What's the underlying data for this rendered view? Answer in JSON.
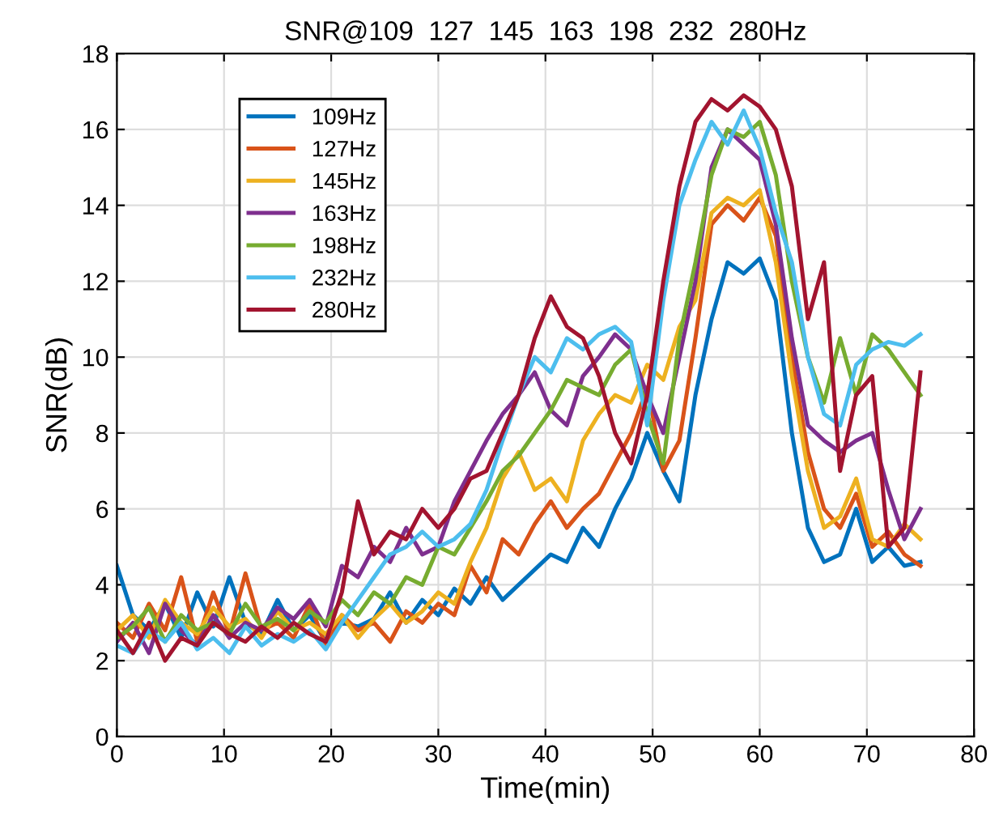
{
  "chart_data": {
    "type": "line",
    "title": "SNR@109  127  145  163  198  232  280Hz",
    "xlabel": "Time(min)",
    "ylabel": "SNR(dB)",
    "x": [
      0,
      1.5,
      3,
      4.5,
      6,
      7.5,
      9,
      10.5,
      12,
      13.5,
      15,
      16.5,
      18,
      19.5,
      21,
      22.5,
      24,
      25.5,
      27,
      28.5,
      30,
      31.5,
      33,
      34.5,
      36,
      37.5,
      39,
      40.5,
      42,
      43.5,
      45,
      46.5,
      48,
      49.5,
      51,
      52.5,
      54,
      55.5,
      57,
      58.5,
      60,
      61.5,
      63,
      64.5,
      66,
      67.5,
      69,
      70.5,
      72,
      73.5,
      75
    ],
    "series": [
      {
        "name": "109Hz",
        "color": "#0072bd",
        "values": [
          4.5,
          3.2,
          2.8,
          3.5,
          2.6,
          3.8,
          2.9,
          4.2,
          3.0,
          2.7,
          3.6,
          2.8,
          3.2,
          2.5,
          3.0,
          2.9,
          3.1,
          3.8,
          3.0,
          3.6,
          3.2,
          3.9,
          3.5,
          4.2,
          3.6,
          4.0,
          4.4,
          4.8,
          4.6,
          5.5,
          5.0,
          6.0,
          6.8,
          8.0,
          7.0,
          6.2,
          9.0,
          11.0,
          12.5,
          12.2,
          12.6,
          11.5,
          8.0,
          5.5,
          4.6,
          4.8,
          6.0,
          4.6,
          5.0,
          4.5,
          4.6
        ]
      },
      {
        "name": "127Hz",
        "color": "#d95319",
        "values": [
          3.0,
          2.6,
          3.5,
          2.8,
          4.2,
          2.5,
          3.8,
          2.7,
          4.3,
          2.8,
          3.0,
          2.6,
          3.5,
          2.4,
          3.2,
          2.8,
          3.0,
          2.5,
          3.3,
          3.0,
          3.5,
          3.2,
          4.5,
          3.8,
          5.2,
          4.8,
          5.6,
          6.2,
          5.5,
          6.0,
          6.4,
          7.2,
          8.0,
          9.2,
          7.0,
          7.8,
          10.5,
          13.5,
          14.0,
          13.6,
          14.2,
          13.2,
          10.0,
          7.5,
          6.0,
          5.5,
          6.4,
          5.0,
          5.4,
          4.8,
          4.5
        ]
      },
      {
        "name": "145Hz",
        "color": "#edb120",
        "values": [
          2.8,
          3.2,
          2.6,
          3.6,
          3.0,
          2.7,
          3.4,
          2.9,
          3.1,
          2.6,
          3.3,
          2.8,
          3.0,
          2.7,
          3.2,
          2.6,
          3.1,
          3.5,
          3.0,
          3.3,
          3.8,
          3.5,
          4.6,
          5.5,
          6.8,
          7.5,
          6.5,
          6.8,
          6.2,
          7.8,
          8.5,
          9.0,
          8.8,
          9.8,
          9.4,
          10.8,
          11.5,
          13.8,
          14.2,
          14.0,
          14.4,
          12.5,
          9.5,
          7.0,
          5.5,
          5.8,
          6.8,
          5.2,
          5.0,
          5.6,
          5.2
        ]
      },
      {
        "name": "163Hz",
        "color": "#7e2f8e",
        "values": [
          2.5,
          3.0,
          2.2,
          3.5,
          2.8,
          2.4,
          3.2,
          2.6,
          3.0,
          2.8,
          3.4,
          3.1,
          3.6,
          2.9,
          4.5,
          4.2,
          5.0,
          4.6,
          5.5,
          4.8,
          5.0,
          6.2,
          7.0,
          7.8,
          8.5,
          9.0,
          9.6,
          8.6,
          8.2,
          9.5,
          10.0,
          10.6,
          10.2,
          9.0,
          8.0,
          10.0,
          12.0,
          15.0,
          16.0,
          15.6,
          15.2,
          13.5,
          10.5,
          8.2,
          7.8,
          7.5,
          7.8,
          8.0,
          6.5,
          5.2,
          6.0
        ]
      },
      {
        "name": "198Hz",
        "color": "#77ac30",
        "values": [
          2.6,
          2.9,
          3.4,
          2.5,
          3.2,
          2.8,
          3.0,
          2.7,
          3.5,
          2.9,
          3.1,
          2.8,
          3.3,
          3.0,
          3.6,
          3.2,
          3.8,
          3.5,
          4.2,
          4.0,
          5.0,
          4.8,
          5.5,
          6.2,
          7.0,
          7.4,
          8.0,
          8.6,
          9.4,
          9.2,
          9.0,
          9.8,
          10.2,
          8.5,
          7.2,
          10.5,
          12.5,
          14.8,
          16.0,
          15.8,
          16.2,
          14.8,
          12.0,
          10.0,
          8.8,
          10.5,
          9.0,
          10.6,
          10.2,
          9.6,
          9.0
        ]
      },
      {
        "name": "232Hz",
        "color": "#4dbeee",
        "values": [
          2.4,
          2.2,
          2.8,
          2.5,
          3.0,
          2.3,
          2.6,
          2.2,
          2.9,
          2.4,
          2.7,
          2.5,
          2.8,
          2.3,
          3.0,
          3.6,
          4.2,
          4.8,
          5.0,
          5.4,
          5.0,
          5.2,
          5.6,
          6.5,
          7.8,
          9.0,
          10.0,
          9.6,
          10.5,
          10.2,
          10.6,
          10.8,
          10.4,
          8.2,
          11.5,
          14.0,
          15.2,
          16.2,
          15.6,
          16.5,
          15.5,
          13.8,
          12.5,
          10.0,
          8.5,
          8.2,
          9.8,
          10.2,
          10.4,
          10.3,
          10.6
        ]
      },
      {
        "name": "280Hz",
        "color": "#a2142f",
        "values": [
          2.8,
          2.2,
          3.0,
          2.0,
          2.6,
          2.4,
          3.0,
          2.7,
          2.5,
          2.9,
          2.6,
          3.0,
          2.7,
          2.5,
          3.8,
          6.2,
          4.8,
          5.4,
          5.2,
          6.0,
          5.5,
          6.0,
          6.8,
          7.0,
          8.0,
          9.0,
          10.5,
          11.6,
          10.8,
          10.5,
          9.5,
          8.0,
          7.2,
          9.0,
          12.0,
          14.5,
          16.2,
          16.8,
          16.5,
          16.9,
          16.6,
          16.0,
          14.5,
          11.0,
          12.5,
          7.0,
          9.0,
          9.5,
          5.0,
          5.5,
          9.6
        ]
      }
    ],
    "xlim": [
      0,
      80
    ],
    "ylim": [
      0,
      18
    ],
    "xticks": [
      0,
      10,
      20,
      30,
      40,
      50,
      60,
      70,
      80
    ],
    "yticks": [
      0,
      2,
      4,
      6,
      8,
      10,
      12,
      14,
      16,
      18
    ],
    "grid": true,
    "legend": "top left",
    "line_style": "solid"
  }
}
